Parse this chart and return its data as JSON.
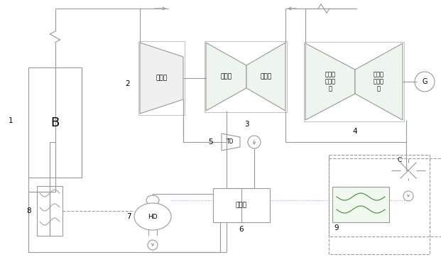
{
  "bg": "#ffffff",
  "lc": "#999999",
  "lc2": "#aaaaaa",
  "lw": 0.8,
  "fill_none": "none",
  "fill_turb": "#f0f0f0",
  "fill_turb_green": "#eef4ee",
  "label_B": "B",
  "label_G": "G",
  "label_TD": "TD",
  "label_HD": "HD",
  "label_C": "C",
  "label_2": "超高压",
  "label_3L": "高压缸",
  "label_3R": "高压缸",
  "label_4L": "中压缸\n及低压\n缸",
  "label_4R": "中压缸\n及低压\n缸",
  "label_6": "混合式",
  "n1": "1",
  "n2": "2",
  "n3": "3",
  "n4": "4",
  "n5": "5",
  "n6": "6",
  "n7": "7",
  "n8": "8",
  "n9": "9",
  "fs": 6.5,
  "fs_label": 7.5,
  "fs_B": 13,
  "fs_G": 7,
  "note_color": "#cccccc",
  "green_wave": "#559944",
  "pink_dot": "#cc9999",
  "pink_dash": "#cc8888"
}
